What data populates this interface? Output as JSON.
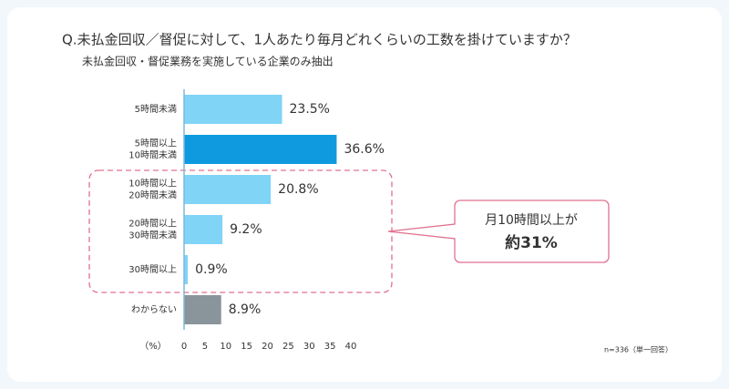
{
  "chart_data": {
    "type": "barh",
    "title": "Q.未払金回収／督促に対して、1人あたり毎月どれくらいの工数を掛けていますか？",
    "subtitle": "未払金回収・督促業務を実施している企業のみ抽出",
    "categories": [
      [
        "5時間未満"
      ],
      [
        "5時間以上",
        "10時間未満"
      ],
      [
        "10時間以上",
        "20時間未満"
      ],
      [
        "20時間以上",
        "30時間未満"
      ],
      [
        "30時間以上"
      ],
      [
        "わからない"
      ]
    ],
    "values": [
      23.5,
      36.6,
      20.8,
      9.2,
      0.9,
      8.9
    ],
    "value_labels": [
      "23.5%",
      "36.6%",
      "20.8%",
      "9.2%",
      "0.9%",
      "8.9%"
    ],
    "colors": [
      "#80d4f6",
      "#0f9ae0",
      "#80d4f6",
      "#80d4f6",
      "#80d4f6",
      "#8a949b"
    ],
    "xlim": [
      0,
      40
    ],
    "xticks": [
      0,
      5,
      10,
      15,
      20,
      25,
      30,
      35,
      40
    ],
    "x_unit": "（%）",
    "note": "n=336（単一回答）",
    "callout": [
      "月10時間以上が",
      "約31%"
    ]
  }
}
